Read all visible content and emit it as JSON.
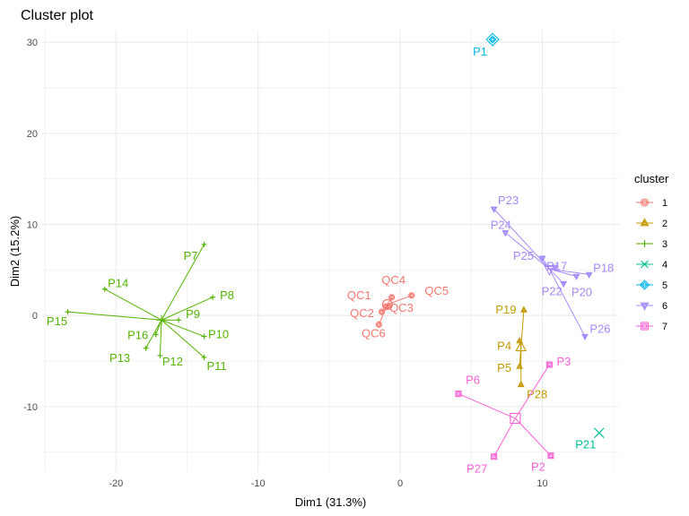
{
  "chart_data": {
    "type": "scatter",
    "title": "Cluster plot",
    "xlabel": "Dim1 (31.3%)",
    "ylabel": "Dim2 (15.2%)",
    "xlim": [
      -25.2,
      15.4
    ],
    "ylim": [
      -17.2,
      31.3
    ],
    "x_ticks": [
      -20,
      -10,
      0,
      10
    ],
    "y_ticks": [
      -10,
      0,
      10,
      20,
      30
    ],
    "grid": true,
    "legend_title": "cluster",
    "legend_position": "right",
    "clusters": [
      {
        "name": "1",
        "color": "#F8766D",
        "marker": "circle",
        "center": [
          -0.9,
          1.2
        ],
        "points": [
          {
            "label": "QC1",
            "x": -1.0,
            "y": 1.0
          },
          {
            "label": "QC2",
            "x": -1.3,
            "y": 0.4
          },
          {
            "label": "QC3",
            "x": -0.8,
            "y": 1.0
          },
          {
            "label": "QC4",
            "x": -0.6,
            "y": 2.0
          },
          {
            "label": "QC5",
            "x": 0.8,
            "y": 2.2
          },
          {
            "label": "QC6",
            "x": -1.5,
            "y": -1.0
          }
        ]
      },
      {
        "name": "2",
        "color": "#C49A00",
        "marker": "triangle",
        "center": [
          8.5,
          -3.5
        ],
        "points": [
          {
            "label": "P19",
            "x": 8.7,
            "y": 0.6
          },
          {
            "label": "P4",
            "x": 8.4,
            "y": -2.8
          },
          {
            "label": "P5",
            "x": 8.4,
            "y": -5.6
          },
          {
            "label": "P28",
            "x": 8.5,
            "y": -7.6
          }
        ]
      },
      {
        "name": "3",
        "color": "#53B400",
        "marker": "plus",
        "center": [
          -16.8,
          -0.5
        ],
        "points": [
          {
            "label": "P7",
            "x": -13.8,
            "y": 7.8
          },
          {
            "label": "P8",
            "x": -13.2,
            "y": 2.0
          },
          {
            "label": "P9",
            "x": -15.6,
            "y": -0.5
          },
          {
            "label": "P10",
            "x": -13.8,
            "y": -2.3
          },
          {
            "label": "P11",
            "x": -13.8,
            "y": -4.6
          },
          {
            "label": "P12",
            "x": -16.9,
            "y": -4.4
          },
          {
            "label": "P13",
            "x": -17.9,
            "y": -3.6
          },
          {
            "label": "P14",
            "x": -20.8,
            "y": 2.9
          },
          {
            "label": "P15",
            "x": -23.4,
            "y": 0.4
          },
          {
            "label": "P16",
            "x": -17.2,
            "y": -2.1
          }
        ]
      },
      {
        "name": "4",
        "color": "#00C094",
        "marker": "x",
        "center": [
          14.0,
          -12.9
        ],
        "points": [
          {
            "label": "P21",
            "x": 14.0,
            "y": -12.9
          }
        ]
      },
      {
        "name": "5",
        "color": "#00B6EB",
        "marker": "diamond",
        "center": [
          6.5,
          30.3
        ],
        "points": [
          {
            "label": "P1",
            "x": 6.5,
            "y": 30.3
          }
        ]
      },
      {
        "name": "6",
        "color": "#A58AFF",
        "marker": "triangle-down",
        "center": [
          10.5,
          5.1
        ],
        "points": [
          {
            "label": "P23",
            "x": 6.6,
            "y": 11.7
          },
          {
            "label": "P24",
            "x": 7.4,
            "y": 9.1
          },
          {
            "label": "P25",
            "x": 10.0,
            "y": 6.3
          },
          {
            "label": "P17",
            "x": 10.9,
            "y": 5.3
          },
          {
            "label": "P18",
            "x": 13.3,
            "y": 4.5
          },
          {
            "label": "P20",
            "x": 12.4,
            "y": 4.3
          },
          {
            "label": "P22",
            "x": 11.5,
            "y": 3.5
          },
          {
            "label": "P26",
            "x": 13.0,
            "y": -2.3
          }
        ]
      },
      {
        "name": "7",
        "color": "#FB61D7",
        "marker": "square",
        "center": [
          8.1,
          -11.3
        ],
        "points": [
          {
            "label": "P3",
            "x": 10.5,
            "y": -5.4
          },
          {
            "label": "P6",
            "x": 4.1,
            "y": -8.6
          },
          {
            "label": "P2",
            "x": 10.6,
            "y": -15.4
          },
          {
            "label": "P27",
            "x": 6.6,
            "y": -15.5
          }
        ]
      }
    ]
  }
}
